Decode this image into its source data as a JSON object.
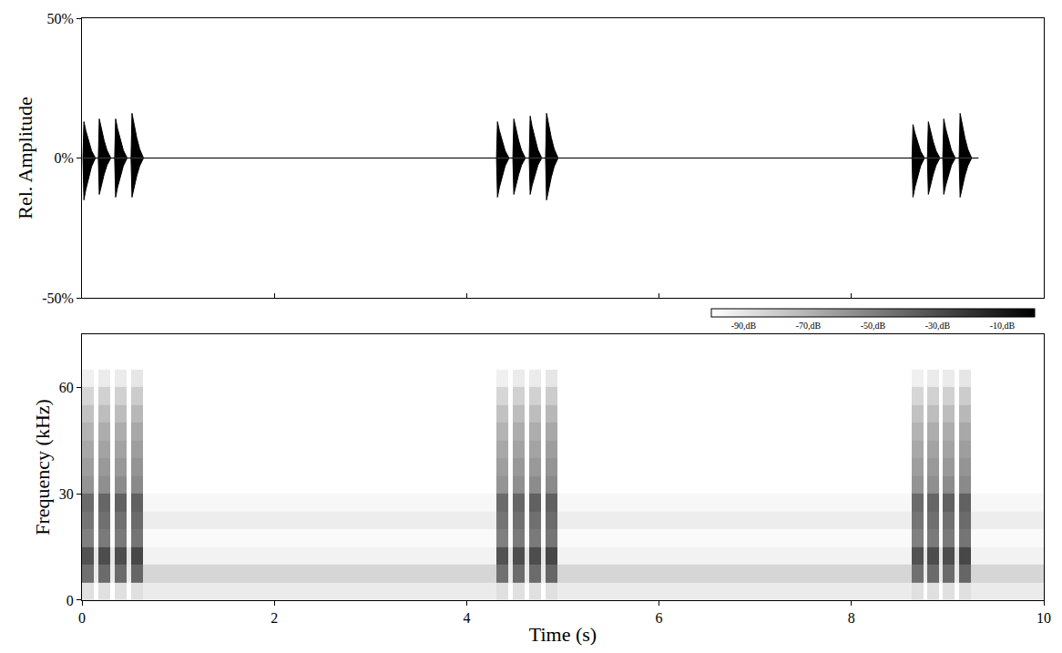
{
  "chart_data": [
    {
      "type": "line",
      "ylabel": "Rel. Amplitude",
      "x": [
        0.01,
        0.02,
        0.04,
        0.07,
        0.1,
        0.14,
        0.17,
        0.18,
        0.2,
        0.23,
        0.26,
        0.3,
        0.34,
        0.35,
        0.37,
        0.4,
        0.43,
        0.47,
        0.51,
        0.52,
        0.54,
        0.57,
        0.6,
        0.64,
        4.31,
        4.32,
        4.34,
        4.37,
        4.4,
        4.44,
        4.48,
        4.49,
        4.51,
        4.54,
        4.57,
        4.61,
        4.65,
        4.66,
        4.68,
        4.71,
        4.74,
        4.78,
        4.82,
        4.83,
        4.85,
        4.88,
        4.91,
        4.95,
        8.63,
        8.64,
        8.66,
        8.69,
        8.72,
        8.76,
        8.79,
        8.8,
        8.82,
        8.85,
        8.88,
        8.92,
        8.95,
        8.96,
        8.98,
        9.01,
        9.04,
        9.08,
        9.12,
        9.13,
        9.15,
        9.18,
        9.21,
        9.25,
        9.32
      ],
      "series": [
        {
          "color": "#000000",
          "values": [
            0,
            13,
            9.8,
            5.9,
            2.6,
            0,
            0,
            14,
            10.5,
            6.3,
            2.8,
            0,
            0,
            14,
            10.5,
            6.3,
            2.8,
            0,
            0,
            16,
            12,
            7.2,
            3.2,
            0,
            0,
            13,
            9.8,
            5.9,
            2.6,
            0,
            0,
            14,
            10.5,
            6.3,
            2.8,
            0,
            0,
            15,
            11.3,
            6.8,
            3,
            0,
            0,
            16,
            12,
            7.2,
            3.2,
            0,
            0,
            12,
            9,
            5.4,
            2.4,
            0,
            0,
            13,
            9.8,
            5.9,
            2.6,
            0,
            0,
            14,
            10.5,
            6.3,
            2.8,
            0,
            0,
            16,
            12,
            7.2,
            3.2,
            0,
            0
          ]
        },
        {
          "color": "#000000",
          "values": [
            0,
            -15,
            -11.3,
            -6.8,
            -3,
            0,
            0,
            -13,
            -9.8,
            -5.9,
            -2.6,
            0,
            0,
            -14,
            -10.5,
            -6.3,
            -2.8,
            0,
            0,
            -14,
            -10.5,
            -6.3,
            -2.8,
            0,
            0,
            -14,
            -10.5,
            -6.3,
            -2.8,
            0,
            0,
            -13,
            -9.8,
            -5.9,
            -2.6,
            0,
            0,
            -13,
            -9.8,
            -5.9,
            -2.6,
            0,
            0,
            -15,
            -11.3,
            -6.8,
            -3,
            0,
            0,
            -14,
            -10.5,
            -6.3,
            -2.8,
            0,
            0,
            -13,
            -9.8,
            -5.9,
            -2.6,
            0,
            0,
            -13,
            -9.8,
            -5.9,
            -2.6,
            0,
            0,
            -14,
            -10.5,
            -6.3,
            -2.8,
            0,
            0
          ]
        }
      ],
      "xlim": [
        0,
        10
      ],
      "xticks": [
        0,
        2,
        4,
        6,
        8,
        10
      ],
      "ylim": [
        -50,
        50
      ],
      "yticks": [
        {
          "value": -50,
          "label": "-50%"
        },
        {
          "value": 0,
          "label": "0%"
        },
        {
          "value": 50,
          "label": "50%"
        }
      ],
      "tick_labels": "y",
      "grid": false
    },
    {
      "type": "heatmap",
      "xlabel": "Time (s)",
      "ylabel": "Frequency (kHz)",
      "x_edges": [
        0,
        0.12,
        0.17,
        0.29,
        0.34,
        0.46,
        0.51,
        0.63,
        4.31,
        4.43,
        4.48,
        4.6,
        4.65,
        4.77,
        4.82,
        4.94,
        8.63,
        8.75,
        8.79,
        8.91,
        8.95,
        9.07,
        9.12,
        9.24,
        10
      ],
      "y_edges": [
        0,
        5,
        10,
        15,
        20,
        25,
        30,
        35,
        40,
        45,
        50,
        55,
        60,
        65,
        70,
        75
      ],
      "z": [
        [
          -88,
          -100,
          -88,
          -100,
          -88,
          -100,
          -88,
          -92,
          -88,
          -100,
          -88,
          -100,
          -88,
          -100,
          -88,
          -92,
          -88,
          -100,
          -88,
          -100,
          -88,
          -100,
          -88,
          -92
        ],
        [
          -44,
          -92,
          -42,
          -92,
          -42,
          -92,
          -40,
          -84,
          -44,
          -92,
          -42,
          -92,
          -42,
          -92,
          -40,
          -84,
          -44,
          -92,
          -42,
          -92,
          -42,
          -92,
          -40,
          -84
        ],
        [
          -32,
          -90,
          -30,
          -90,
          -30,
          -90,
          -28,
          -95,
          -32,
          -90,
          -30,
          -90,
          -30,
          -90,
          -28,
          -95,
          -32,
          -90,
          -30,
          -90,
          -30,
          -90,
          -28,
          -95
        ],
        [
          -50,
          -98,
          -48,
          -98,
          -48,
          -98,
          -46,
          -98,
          -50,
          -98,
          -48,
          -98,
          -48,
          -98,
          -46,
          -98,
          -50,
          -98,
          -48,
          -98,
          -48,
          -98,
          -46,
          -98
        ],
        [
          -46,
          -98,
          -44,
          -98,
          -44,
          -98,
          -42,
          -93,
          -46,
          -98,
          -44,
          -98,
          -44,
          -98,
          -42,
          -93,
          -46,
          -98,
          -44,
          -98,
          -44,
          -98,
          -42,
          -93
        ],
        [
          -42,
          -98,
          -40,
          -98,
          -38,
          -98,
          -38,
          -97,
          -42,
          -98,
          -40,
          -98,
          -38,
          -98,
          -38,
          -97,
          -42,
          -98,
          -40,
          -98,
          -38,
          -98,
          -38,
          -97
        ],
        [
          -58,
          -100,
          -56,
          -100,
          -55,
          -100,
          -54,
          -100,
          -58,
          -100,
          -56,
          -100,
          -55,
          -100,
          -54,
          -100,
          -58,
          -100,
          -56,
          -100,
          -55,
          -100,
          -54,
          -100
        ],
        [
          -62,
          -100,
          -60,
          -100,
          -60,
          -100,
          -58,
          -100,
          -62,
          -100,
          -60,
          -100,
          -60,
          -100,
          -58,
          -100,
          -62,
          -100,
          -60,
          -100,
          -60,
          -100,
          -58,
          -100
        ],
        [
          -66,
          -100,
          -64,
          -100,
          -64,
          -100,
          -62,
          -100,
          -66,
          -100,
          -64,
          -100,
          -64,
          -100,
          -62,
          -100,
          -66,
          -100,
          -64,
          -100,
          -64,
          -100,
          -62,
          -100
        ],
        [
          -70,
          -100,
          -68,
          -100,
          -68,
          -100,
          -66,
          -100,
          -70,
          -100,
          -68,
          -100,
          -68,
          -100,
          -66,
          -100,
          -70,
          -100,
          -68,
          -100,
          -68,
          -100,
          -66,
          -100
        ],
        [
          -76,
          -100,
          -74,
          -100,
          -74,
          -100,
          -72,
          -100,
          -76,
          -100,
          -74,
          -100,
          -74,
          -100,
          -72,
          -100,
          -76,
          -100,
          -74,
          -100,
          -74,
          -100,
          -72,
          -100
        ],
        [
          -84,
          -100,
          -82,
          -100,
          -82,
          -100,
          -80,
          -100,
          -84,
          -100,
          -82,
          -100,
          -82,
          -100,
          -80,
          -100,
          -84,
          -100,
          -82,
          -100,
          -82,
          -100,
          -80,
          -100
        ],
        [
          -94,
          -100,
          -92,
          -100,
          -92,
          -100,
          -90,
          -100,
          -94,
          -100,
          -92,
          -100,
          -92,
          -100,
          -90,
          -100,
          -94,
          -100,
          -92,
          -100,
          -92,
          -100,
          -90,
          -100
        ],
        [
          -100,
          -100,
          -100,
          -100,
          -100,
          -100,
          -100,
          -100,
          -100,
          -100,
          -100,
          -100,
          -100,
          -100,
          -100,
          -100,
          -100,
          -100,
          -100,
          -100,
          -100,
          -100,
          -100,
          -100
        ],
        [
          -100,
          -100,
          -100,
          -100,
          -100,
          -100,
          -100,
          -100,
          -100,
          -100,
          -100,
          -100,
          -100,
          -100,
          -100,
          -100,
          -100,
          -100,
          -100,
          -100,
          -100,
          -100,
          -100,
          -100
        ]
      ],
      "zlim": [
        -100,
        0
      ],
      "zticks": [
        {
          "value": -90,
          "label": "-90,dB"
        },
        {
          "value": -70,
          "label": "-70,dB"
        },
        {
          "value": -50,
          "label": "-50,dB"
        },
        {
          "value": -30,
          "label": "-30,dB"
        },
        {
          "value": -10,
          "label": "-10,dB"
        }
      ],
      "xlim": [
        0,
        10
      ],
      "xticks": [
        0,
        2,
        4,
        6,
        8,
        10
      ],
      "ylim": [
        0,
        75
      ],
      "yticks": [
        0,
        30,
        60
      ],
      "grid": false
    }
  ]
}
